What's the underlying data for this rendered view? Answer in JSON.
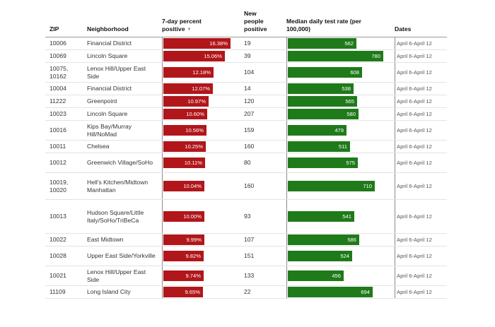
{
  "chart_data": {
    "type": "table",
    "columns": [
      {
        "key": "zip",
        "label": "ZIP"
      },
      {
        "key": "neighborhood",
        "label": "Neighborhood"
      },
      {
        "key": "percent_positive",
        "label": "7-day percent positive",
        "sort_icon": "▼"
      },
      {
        "key": "new_positive",
        "label": "New people positive"
      },
      {
        "key": "test_rate",
        "label": "Median daily test rate (per 100,000)"
      },
      {
        "key": "dates",
        "label": "Dates"
      }
    ],
    "bar_colors": {
      "percent_positive": "#b1161a",
      "test_rate": "#1f7a1a"
    },
    "rows": [
      {
        "zip": "10006",
        "neighborhood": "Financial District",
        "percent_positive": 16.38,
        "percent_label": "16.38%",
        "new_positive": "19",
        "test_rate": 562,
        "rate_label": "562",
        "dates": "April 6-April 12"
      },
      {
        "zip": "10069",
        "neighborhood": "Lincoln Square",
        "percent_positive": 15.06,
        "percent_label": "15.06%",
        "new_positive": "39",
        "test_rate": 780,
        "rate_label": "780",
        "dates": "April 6-April 12"
      },
      {
        "zip": "10075, 10162",
        "neighborhood": "Lenox Hill/Upper East Side",
        "percent_positive": 12.18,
        "percent_label": "12.18%",
        "new_positive": "104",
        "test_rate": 608,
        "rate_label": "608",
        "dates": "April 6-April 12"
      },
      {
        "zip": "10004",
        "neighborhood": "Financial District",
        "percent_positive": 12.07,
        "percent_label": "12.07%",
        "new_positive": "14",
        "test_rate": 538,
        "rate_label": "538",
        "dates": "April 6-April 12"
      },
      {
        "zip": "11222",
        "neighborhood": "Greenpoint",
        "percent_positive": 10.97,
        "percent_label": "10.97%",
        "new_positive": "120",
        "test_rate": 565,
        "rate_label": "565",
        "dates": "April 6-April 12"
      },
      {
        "zip": "10023",
        "neighborhood": "Lincoln Square",
        "percent_positive": 10.6,
        "percent_label": "10.60%",
        "new_positive": "207",
        "test_rate": 580,
        "rate_label": "580",
        "dates": "April 6-April 12"
      },
      {
        "zip": "10016",
        "neighborhood": "Kips Bay/Murray Hill/NoMad",
        "percent_positive": 10.56,
        "percent_label": "10.56%",
        "new_positive": "159",
        "test_rate": 479,
        "rate_label": "479",
        "dates": "April 6-April 12"
      },
      {
        "zip": "10011",
        "neighborhood": "Chelsea",
        "percent_positive": 10.25,
        "percent_label": "10.25%",
        "new_positive": "160",
        "test_rate": 511,
        "rate_label": "511",
        "dates": "April 6-April 12"
      },
      {
        "zip": "10012",
        "neighborhood": "Greenwich Village/SoHo",
        "percent_positive": 10.11,
        "percent_label": "10.11%",
        "new_positive": "80",
        "test_rate": 575,
        "rate_label": "575",
        "dates": "April 6-April 12"
      },
      {
        "zip": "10019, 10020",
        "neighborhood": "Hell's Kitchen/Midtown Manhattan",
        "percent_positive": 10.04,
        "percent_label": "10.04%",
        "new_positive": "160",
        "test_rate": 710,
        "rate_label": "710",
        "dates": "April 6-April 12"
      },
      {
        "zip": "10013",
        "neighborhood": "Hudson Square/Little Italy/SoHo/TriBeCa",
        "percent_positive": 10.0,
        "percent_label": "10.00%",
        "new_positive": "93",
        "test_rate": 541,
        "rate_label": "541",
        "dates": "April 6-April 12"
      },
      {
        "zip": "10022",
        "neighborhood": "East Midtown",
        "percent_positive": 9.99,
        "percent_label": "9.99%",
        "new_positive": "107",
        "test_rate": 586,
        "rate_label": "586",
        "dates": "April 6-April 12"
      },
      {
        "zip": "10028",
        "neighborhood": "Upper East Side/Yorkville",
        "percent_positive": 9.82,
        "percent_label": "9.82%",
        "new_positive": "151",
        "test_rate": 524,
        "rate_label": "524",
        "dates": "April 6-April 12"
      },
      {
        "zip": "10021",
        "neighborhood": "Lenox Hill/Upper East Side",
        "percent_positive": 9.74,
        "percent_label": "9.74%",
        "new_positive": "133",
        "test_rate": 456,
        "rate_label": "456",
        "dates": "April 6-April 12"
      },
      {
        "zip": "11109",
        "neighborhood": "Long Island City",
        "percent_positive": 9.65,
        "percent_label": "9.65%",
        "new_positive": "22",
        "test_rate": 694,
        "rate_label": "694",
        "dates": "April 6-April 12"
      }
    ]
  }
}
